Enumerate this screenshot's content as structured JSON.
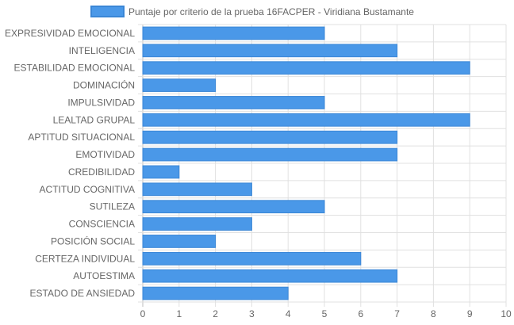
{
  "chart_data": {
    "type": "bar",
    "orientation": "horizontal",
    "categories": [
      "EXPRESIVIDAD EMOCIONAL",
      "INTELIGENCIA",
      "ESTABILIDAD EMOCIONAL",
      "DOMINACIÓN",
      "IMPULSIVIDAD",
      "LEALTAD GRUPAL",
      "APTITUD SITUACIONAL",
      "EMOTIVIDAD",
      "CREDIBILIDAD",
      "ACTITUD COGNITIVA",
      "SUTILEZA",
      "CONSCIENCIA",
      "POSICIÓN SOCIAL",
      "CERTEZA INDIVIDUAL",
      "AUTOESTIMA",
      "ESTADO DE ANSIEDAD"
    ],
    "series": [
      {
        "name": "Puntaje por criterio de la prueba 16FACPER - Viridiana Bustamante",
        "values": [
          5,
          7,
          9,
          2,
          5,
          9,
          7,
          7,
          1,
          3,
          5,
          3,
          2,
          6,
          7,
          4
        ]
      }
    ],
    "xlim": [
      0,
      10
    ],
    "x_ticks": [
      "0",
      "1",
      "2",
      "3",
      "4",
      "5",
      "6",
      "7",
      "8",
      "9",
      "10"
    ],
    "grid": true,
    "legend_position": "top",
    "colors": {
      "bar_fill": "#4a98e8",
      "bar_border": "#3a86d6",
      "grid": "#e0e0e0",
      "axis_text": "#666666"
    }
  }
}
